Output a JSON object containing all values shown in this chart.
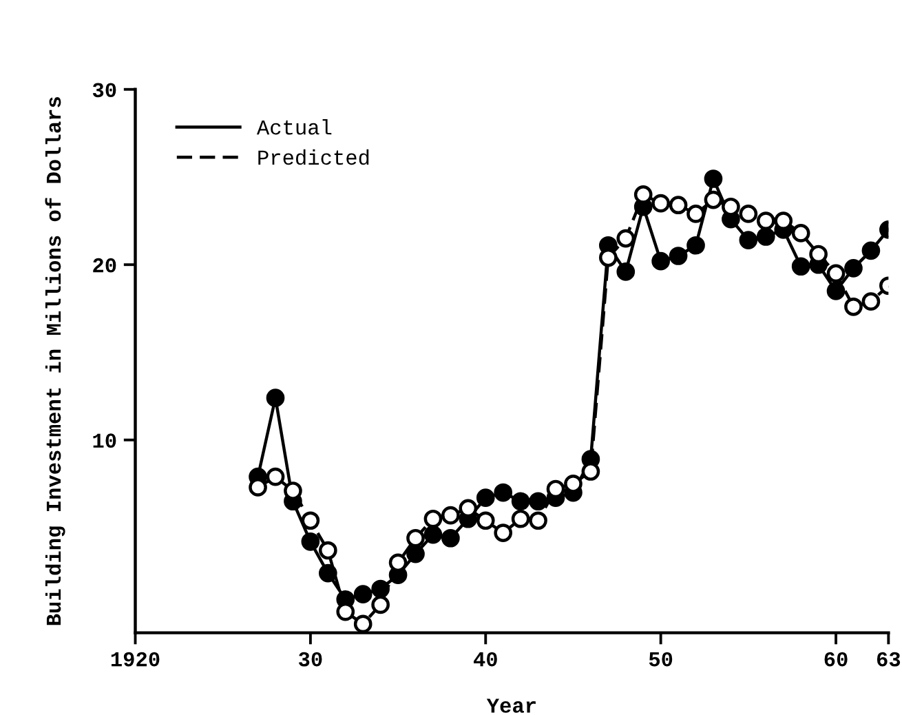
{
  "chart_data": {
    "type": "line",
    "xlabel": "Year",
    "ylabel": "Building Investment in Millions of Dollars",
    "x": [
      1927,
      1928,
      1929,
      1930,
      1931,
      1932,
      1933,
      1934,
      1935,
      1936,
      1937,
      1938,
      1939,
      1940,
      1941,
      1942,
      1943,
      1944,
      1945,
      1946,
      1947,
      1948,
      1949,
      1950,
      1951,
      1952,
      1953,
      1954,
      1955,
      1956,
      1957,
      1958,
      1959,
      1960,
      1961,
      1962,
      1963
    ],
    "series": [
      {
        "name": "Actual",
        "color": "#000000",
        "line_style": "solid",
        "values": [
          7.9,
          12.4,
          6.5,
          4.2,
          2.4,
          0.9,
          1.2,
          1.5,
          2.3,
          3.5,
          4.6,
          4.4,
          5.5,
          6.7,
          7.0,
          6.5,
          6.5,
          6.7,
          7.0,
          8.9,
          21.1,
          19.6,
          23.3,
          20.2,
          20.5,
          21.1,
          24.9,
          22.6,
          21.4,
          21.6,
          22.0,
          19.9,
          20.0,
          18.5,
          19.8,
          20.8,
          22.0
        ]
      },
      {
        "name": "Predicted",
        "color": "#000000",
        "line_style": "dashed",
        "values": [
          7.3,
          7.9,
          7.1,
          5.4,
          3.7,
          0.2,
          -0.5,
          0.6,
          3.0,
          4.4,
          5.5,
          5.7,
          6.1,
          5.4,
          4.7,
          5.5,
          5.4,
          7.2,
          7.5,
          8.2,
          20.4,
          21.5,
          24.0,
          23.5,
          23.4,
          22.9,
          23.7,
          23.3,
          22.9,
          22.5,
          22.5,
          21.8,
          20.6,
          19.5,
          17.6,
          17.9,
          18.8
        ]
      }
    ],
    "xlim": [
      1920,
      1963
    ],
    "xticks": [
      {
        "value": 1920,
        "label": "1920"
      },
      {
        "value": 1930,
        "label": "30"
      },
      {
        "value": 1940,
        "label": "40"
      },
      {
        "value": 1950,
        "label": "50"
      },
      {
        "value": 1960,
        "label": "60"
      },
      {
        "value": 1963,
        "label": "63"
      }
    ],
    "ylim": [
      -1,
      30
    ],
    "yticks": [
      10,
      20,
      30
    ],
    "marker": "circle",
    "grid": false,
    "legend": "top left"
  }
}
